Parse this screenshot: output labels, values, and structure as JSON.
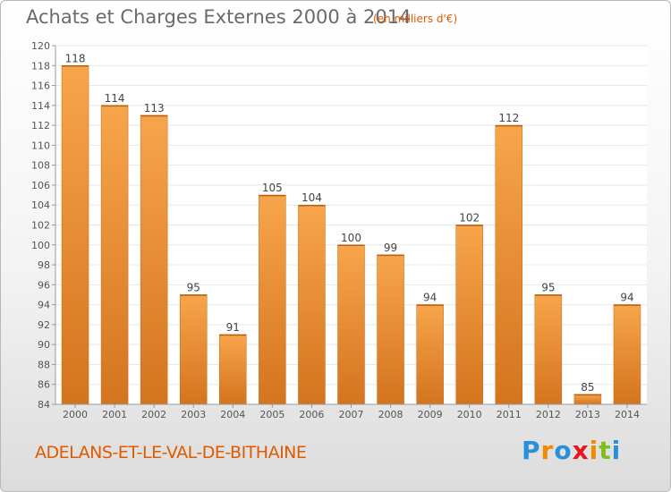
{
  "header": {
    "title": "Achats et Charges Externes 2000 à 2014",
    "subtitle": "(en milliers d'€)"
  },
  "footer": {
    "commune": "ADELANS-ET-LE-VAL-DE-BITHAINE",
    "logo_letters": [
      "P",
      "r",
      "o",
      "x",
      "i",
      "t",
      "i"
    ],
    "logo_colors": [
      "#2a8fd8",
      "#f08a00",
      "#2a8fd8",
      "#e8141e",
      "#f08a00",
      "#7dbf1d",
      "#2a8fd8"
    ]
  },
  "colors": {
    "bar_light": "#f7a54b",
    "bar_dark": "#d4741e",
    "accent": "#e05a00",
    "grid": "#e8e8e8"
  },
  "chart_data": {
    "type": "bar",
    "categories": [
      "2000",
      "2001",
      "2002",
      "2003",
      "2004",
      "2005",
      "2006",
      "2007",
      "2008",
      "2009",
      "2010",
      "2011",
      "2012",
      "2013",
      "2014"
    ],
    "values": [
      118,
      114,
      113,
      95,
      91,
      105,
      104,
      100,
      99,
      94,
      102,
      112,
      95,
      85,
      94
    ],
    "data_labels": [
      "118",
      "114",
      "113",
      "95",
      "91",
      "105",
      "104",
      "100",
      "99",
      "94",
      "102",
      "112",
      "95",
      "85",
      "94"
    ],
    "y_ticks": [
      "84",
      "86",
      "88",
      "90",
      "92",
      "94",
      "96",
      "98",
      "100",
      "102",
      "104",
      "106",
      "108",
      "110",
      "112",
      "114",
      "116",
      "118",
      "120"
    ],
    "ylim": [
      84,
      120
    ],
    "grid": true
  }
}
